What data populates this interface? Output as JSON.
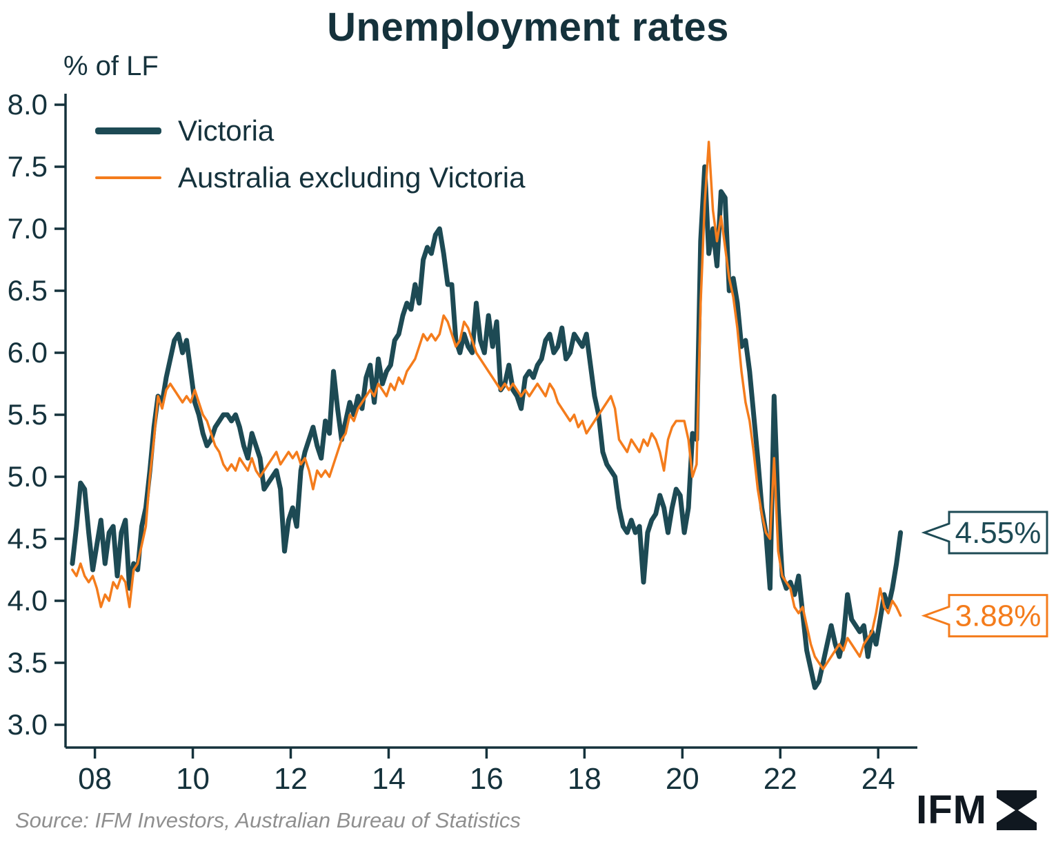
{
  "title": "Unemployment rates",
  "y_axis_label": "% of LF",
  "legend": {
    "victoria": "Victoria",
    "aus_ex_vic": "Australia excluding Victoria"
  },
  "colors": {
    "victoria": "#1d4a54",
    "aus_ex_vic": "#f47c1c",
    "axis": "#15323c",
    "source_text": "#8f8f8f"
  },
  "callouts": [
    {
      "series": "victoria",
      "label": "4.55%",
      "value": 4.55
    },
    {
      "series": "aus_ex_vic",
      "label": "3.88%",
      "value": 3.88
    }
  ],
  "source": "Source: IFM Investors, Australian Bureau of Statistics",
  "logo_text": "IFM",
  "chart_data": {
    "type": "line",
    "title": "Unemployment rates",
    "xlabel": "",
    "ylabel": "% of LF",
    "frequency": "monthly",
    "x_start_year": 2007.54,
    "xlim": [
      2007.4,
      2024.8
    ],
    "ylim": [
      3.0,
      8.0
    ],
    "y_ticks": [
      3.0,
      3.5,
      4.0,
      4.5,
      5.0,
      5.5,
      6.0,
      6.5,
      7.0,
      7.5,
      8.0
    ],
    "x_ticks": [
      2008,
      2010,
      2012,
      2014,
      2016,
      2018,
      2020,
      2022,
      2024
    ],
    "x_tick_labels": [
      "08",
      "10",
      "12",
      "14",
      "16",
      "18",
      "20",
      "22",
      "24"
    ],
    "grid": false,
    "legend_position": "top-left",
    "series": [
      {
        "name": "Victoria",
        "color": "#1d4a54",
        "stroke_width": 7,
        "values": [
          4.3,
          4.6,
          4.95,
          4.9,
          4.55,
          4.25,
          4.45,
          4.65,
          4.3,
          4.55,
          4.6,
          4.2,
          4.55,
          4.65,
          4.1,
          4.3,
          4.25,
          4.6,
          4.75,
          5.05,
          5.4,
          5.65,
          5.6,
          5.8,
          5.95,
          6.1,
          6.15,
          6.0,
          6.1,
          5.85,
          5.6,
          5.5,
          5.35,
          5.25,
          5.3,
          5.4,
          5.45,
          5.5,
          5.5,
          5.45,
          5.5,
          5.4,
          5.25,
          5.15,
          5.35,
          5.25,
          5.15,
          4.9,
          4.95,
          5.0,
          5.05,
          4.9,
          4.4,
          4.65,
          4.75,
          4.6,
          5.05,
          5.2,
          5.3,
          5.4,
          5.25,
          5.15,
          5.45,
          5.35,
          5.85,
          5.55,
          5.3,
          5.45,
          5.6,
          5.5,
          5.65,
          5.55,
          5.8,
          5.9,
          5.6,
          5.95,
          5.75,
          5.85,
          5.9,
          6.1,
          6.15,
          6.3,
          6.4,
          6.35,
          6.55,
          6.4,
          6.75,
          6.85,
          6.8,
          6.95,
          7.0,
          6.8,
          6.55,
          6.55,
          6.1,
          6.0,
          6.15,
          6.05,
          6.0,
          6.4,
          6.1,
          6.0,
          6.3,
          6.05,
          6.25,
          5.7,
          5.75,
          5.9,
          5.7,
          5.65,
          5.55,
          5.8,
          5.85,
          5.8,
          5.9,
          5.95,
          6.1,
          6.15,
          6.0,
          6.05,
          6.2,
          5.95,
          6.0,
          6.15,
          6.1,
          6.05,
          6.15,
          5.9,
          5.65,
          5.5,
          5.2,
          5.1,
          5.05,
          5.0,
          4.75,
          4.6,
          4.55,
          4.65,
          4.55,
          4.6,
          4.15,
          4.55,
          4.65,
          4.7,
          4.85,
          4.75,
          4.55,
          4.75,
          4.9,
          4.85,
          4.55,
          4.75,
          5.35,
          5.3,
          6.9,
          7.5,
          6.8,
          7.0,
          6.7,
          7.3,
          7.25,
          6.5,
          6.6,
          6.4,
          6.05,
          6.1,
          5.85,
          5.5,
          5.15,
          4.75,
          4.55,
          4.1,
          5.65,
          4.75,
          4.2,
          4.1,
          4.15,
          4.05,
          4.2,
          3.9,
          3.6,
          3.45,
          3.3,
          3.35,
          3.5,
          3.65,
          3.8,
          3.65,
          3.55,
          3.7,
          4.05,
          3.85,
          3.8,
          3.75,
          3.8,
          3.55,
          3.75,
          3.65,
          3.85,
          4.05,
          3.95,
          4.1,
          4.3,
          4.55
        ]
      },
      {
        "name": "Australia excluding Victoria",
        "color": "#f47c1c",
        "stroke_width": 3.5,
        "values": [
          4.25,
          4.2,
          4.3,
          4.2,
          4.15,
          4.2,
          4.1,
          3.95,
          4.05,
          4.0,
          4.15,
          4.1,
          4.2,
          4.15,
          3.95,
          4.25,
          4.3,
          4.45,
          4.6,
          5.0,
          5.3,
          5.65,
          5.55,
          5.7,
          5.75,
          5.7,
          5.65,
          5.6,
          5.65,
          5.6,
          5.7,
          5.6,
          5.5,
          5.45,
          5.35,
          5.25,
          5.2,
          5.1,
          5.05,
          5.1,
          5.05,
          5.15,
          5.1,
          5.05,
          5.15,
          5.05,
          5.0,
          5.05,
          5.1,
          5.15,
          5.2,
          5.1,
          5.15,
          5.2,
          5.15,
          5.2,
          5.1,
          5.15,
          5.05,
          4.9,
          5.05,
          5.0,
          5.05,
          5.0,
          5.1,
          5.2,
          5.3,
          5.35,
          5.5,
          5.45,
          5.55,
          5.6,
          5.65,
          5.7,
          5.65,
          5.75,
          5.7,
          5.65,
          5.75,
          5.7,
          5.8,
          5.75,
          5.85,
          5.9,
          5.95,
          6.05,
          6.15,
          6.1,
          6.15,
          6.1,
          6.15,
          6.3,
          6.25,
          6.15,
          6.05,
          6.1,
          6.25,
          6.2,
          6.1,
          6.0,
          5.95,
          5.9,
          5.85,
          5.8,
          5.75,
          5.7,
          5.75,
          5.7,
          5.75,
          5.7,
          5.65,
          5.7,
          5.65,
          5.7,
          5.75,
          5.7,
          5.65,
          5.75,
          5.7,
          5.6,
          5.55,
          5.5,
          5.45,
          5.5,
          5.4,
          5.45,
          5.35,
          5.4,
          5.45,
          5.5,
          5.55,
          5.6,
          5.65,
          5.55,
          5.3,
          5.25,
          5.2,
          5.3,
          5.25,
          5.2,
          5.3,
          5.25,
          5.35,
          5.3,
          5.2,
          5.05,
          5.3,
          5.4,
          5.45,
          5.45,
          5.45,
          5.3,
          5.0,
          5.1,
          6.4,
          7.2,
          7.7,
          7.15,
          6.9,
          7.1,
          6.85,
          6.6,
          6.45,
          6.2,
          5.85,
          5.6,
          5.45,
          5.2,
          4.9,
          4.7,
          4.55,
          4.5,
          5.15,
          4.4,
          4.2,
          4.15,
          4.1,
          3.95,
          3.9,
          3.95,
          3.8,
          3.65,
          3.55,
          3.5,
          3.45,
          3.5,
          3.55,
          3.6,
          3.65,
          3.6,
          3.7,
          3.65,
          3.6,
          3.55,
          3.65,
          3.7,
          3.75,
          3.9,
          4.1,
          3.95,
          3.9,
          4.0,
          3.95,
          3.88
        ]
      }
    ]
  }
}
